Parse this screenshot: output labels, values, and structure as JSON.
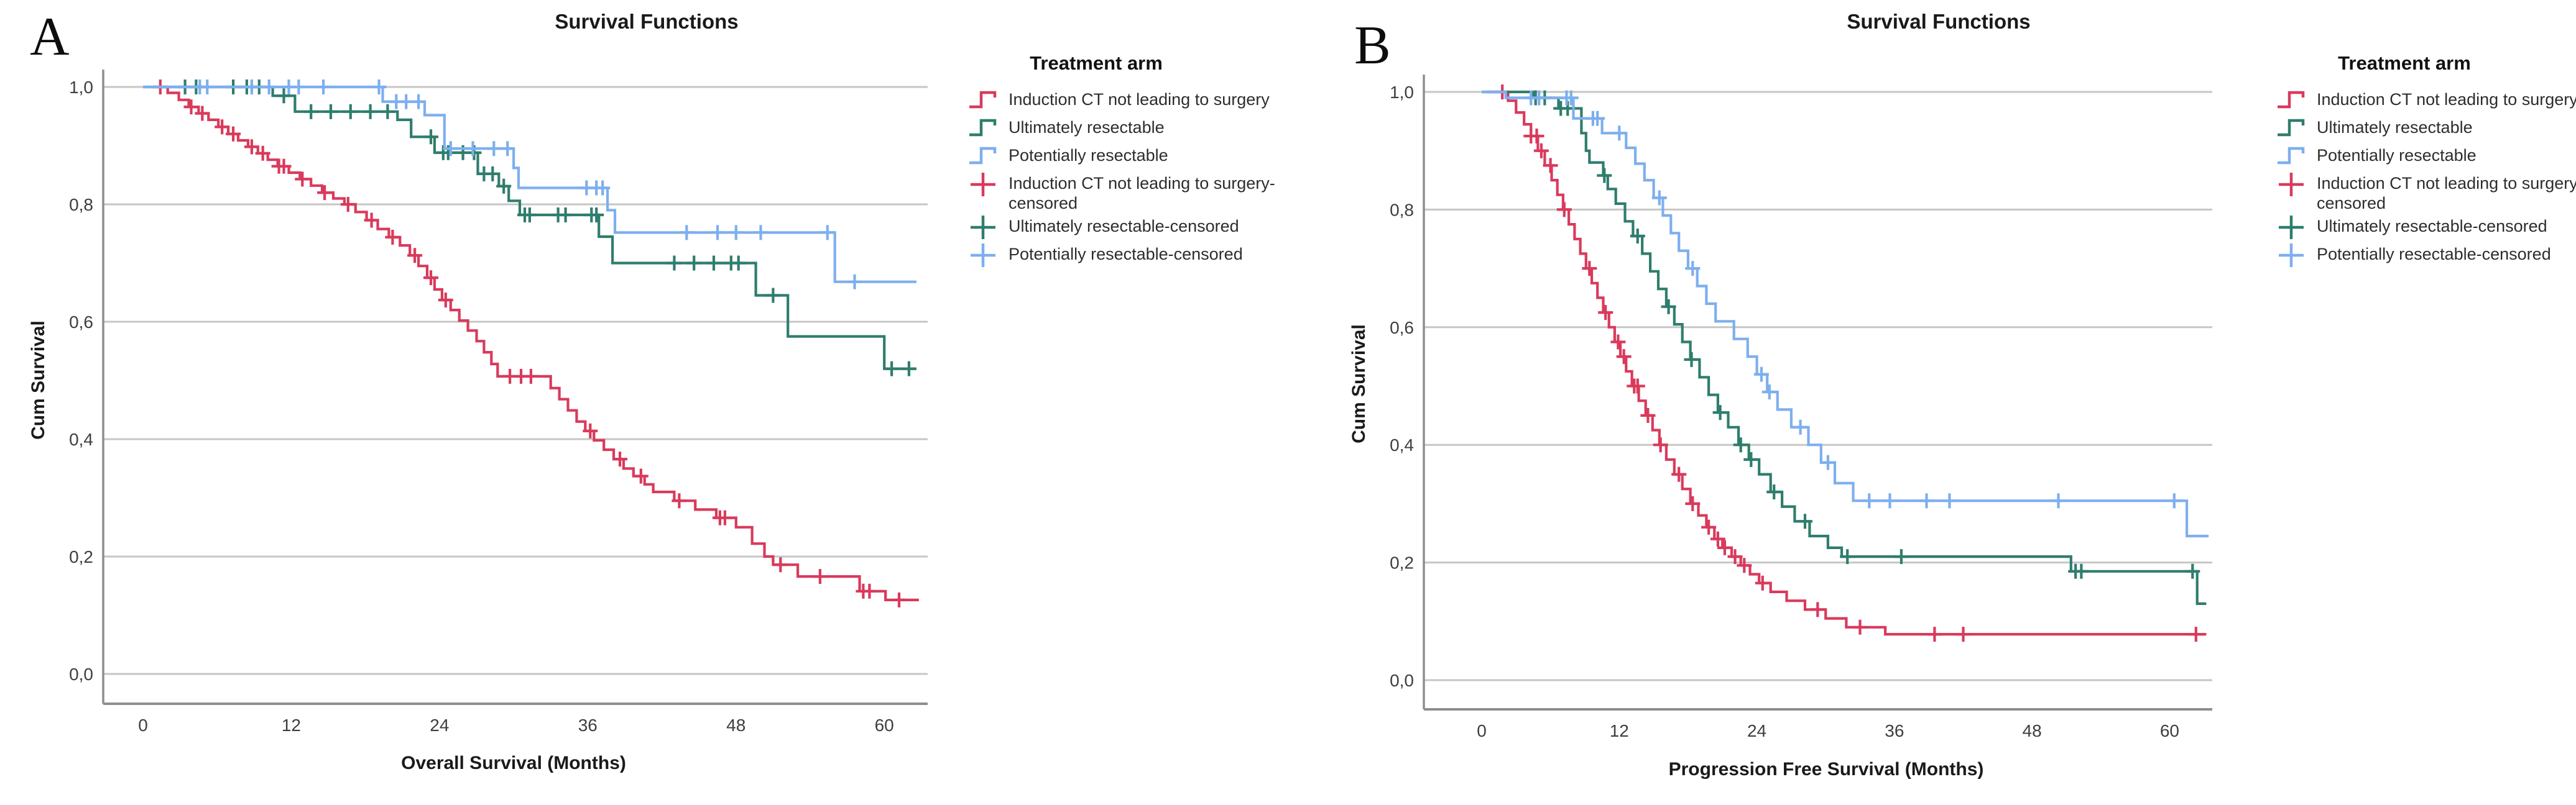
{
  "figure": {
    "background": "#ffffff"
  },
  "colors": {
    "red": "#d93a5c",
    "green": "#2f7d6d",
    "blue": "#7dafee",
    "grid": "#c6c6c6",
    "axis": "#8e8e8e",
    "tick_text": "#3e3e3e",
    "title_text": "#1a1a1a"
  },
  "legend": {
    "title": "Treatment arm",
    "items": [
      {
        "label": "Induction CT not leading to surgery",
        "color": "red",
        "glyph": "step"
      },
      {
        "label": "Ultimately resectable",
        "color": "green",
        "glyph": "step"
      },
      {
        "label": "Potentially resectable",
        "color": "blue",
        "glyph": "step"
      },
      {
        "label": "Induction CT not leading to surgery-censored",
        "color": "red",
        "glyph": "plus"
      },
      {
        "label": "Ultimately resectable-censored",
        "color": "green",
        "glyph": "plus"
      },
      {
        "label": "Potentially resectable-censored",
        "color": "blue",
        "glyph": "plus"
      }
    ]
  },
  "chart_data": [
    {
      "panel": "A",
      "type": "line",
      "subtype": "kaplan_meier_step",
      "title": "Survival Functions",
      "xlabel": "Overall Survival (Months)",
      "ylabel": "Cum Survival",
      "xticks": [
        0,
        12,
        24,
        36,
        48,
        60
      ],
      "yticks": [
        1.0,
        0.8,
        0.6,
        0.4,
        0.2,
        0.0
      ],
      "ytick_labels": [
        "1,0",
        "0,8",
        "0,6",
        "0,4",
        "0,2",
        "0,0"
      ],
      "xlim": [
        0,
        63
      ],
      "ylim": [
        0,
        1
      ],
      "grid": "horizontal",
      "legend_position": "right",
      "series": [
        {
          "key": "induction-ct-not-leading-to-surgery",
          "name": "Induction CT not leading to surgery",
          "color": "red",
          "end": 62.8,
          "steps": [
            [
              0.8,
              1.0
            ],
            [
              2.0,
              0.99
            ],
            [
              2.9,
              0.978
            ],
            [
              3.7,
              0.966
            ],
            [
              4.5,
              0.955
            ],
            [
              5.3,
              0.944
            ],
            [
              6.1,
              0.932
            ],
            [
              6.9,
              0.92
            ],
            [
              7.7,
              0.909
            ],
            [
              8.5,
              0.898
            ],
            [
              9.3,
              0.887
            ],
            [
              10.1,
              0.876
            ],
            [
              10.9,
              0.865
            ],
            [
              11.8,
              0.854
            ],
            [
              12.7,
              0.843
            ],
            [
              13.6,
              0.832
            ],
            [
              14.5,
              0.82
            ],
            [
              15.4,
              0.81
            ],
            [
              16.3,
              0.8
            ],
            [
              17.2,
              0.787
            ],
            [
              18.1,
              0.773
            ],
            [
              19.0,
              0.758
            ],
            [
              19.9,
              0.744
            ],
            [
              20.8,
              0.73
            ],
            [
              21.6,
              0.713
            ],
            [
              22.3,
              0.695
            ],
            [
              23.0,
              0.675
            ],
            [
              23.6,
              0.655
            ],
            [
              24.2,
              0.637
            ],
            [
              24.9,
              0.62
            ],
            [
              25.6,
              0.602
            ],
            [
              26.3,
              0.585
            ],
            [
              27.0,
              0.567
            ],
            [
              27.6,
              0.548
            ],
            [
              28.2,
              0.528
            ],
            [
              28.7,
              0.507
            ],
            [
              33.0,
              0.487
            ],
            [
              33.7,
              0.468
            ],
            [
              34.4,
              0.449
            ],
            [
              35.1,
              0.43
            ],
            [
              35.8,
              0.414
            ],
            [
              36.5,
              0.398
            ],
            [
              37.3,
              0.382
            ],
            [
              38.1,
              0.366
            ],
            [
              38.9,
              0.35
            ],
            [
              39.7,
              0.337
            ],
            [
              40.6,
              0.323
            ],
            [
              41.3,
              0.31
            ],
            [
              43.0,
              0.295
            ],
            [
              44.7,
              0.28
            ],
            [
              46.4,
              0.266
            ],
            [
              48.0,
              0.25
            ],
            [
              49.3,
              0.222
            ],
            [
              50.3,
              0.2
            ],
            [
              51.0,
              0.186
            ],
            [
              53.0,
              0.166
            ],
            [
              58.0,
              0.141
            ],
            [
              60.1,
              0.126
            ]
          ],
          "censored": [
            1.4,
            3.9,
            4.8,
            6.4,
            7.3,
            8.8,
            9.7,
            11.0,
            11.4,
            12.9,
            14.7,
            16.6,
            18.5,
            20.2,
            22.0,
            23.3,
            24.5,
            29.7,
            30.6,
            31.4,
            36.2,
            38.6,
            40.3,
            43.4,
            46.7,
            47.1,
            51.6,
            54.8,
            58.3,
            58.8,
            61.2
          ]
        },
        {
          "key": "ultimately-resectable",
          "name": "Ultimately resectable",
          "color": "green",
          "end": 62.6,
          "steps": [
            [
              0,
              1.0
            ],
            [
              10.5,
              0.985
            ],
            [
              12.3,
              0.958
            ],
            [
              20.6,
              0.944
            ],
            [
              21.7,
              0.915
            ],
            [
              23.6,
              0.888
            ],
            [
              27.1,
              0.852
            ],
            [
              28.8,
              0.831
            ],
            [
              29.6,
              0.806
            ],
            [
              30.5,
              0.782
            ],
            [
              36.9,
              0.745
            ],
            [
              38.0,
              0.7
            ],
            [
              49.6,
              0.645
            ],
            [
              52.2,
              0.575
            ],
            [
              60.0,
              0.52
            ]
          ],
          "censored": [
            3.4,
            4.3,
            7.3,
            8.4,
            9.4,
            11.4,
            13.6,
            15.2,
            16.8,
            18.4,
            19.8,
            23.3,
            24.3,
            24.7,
            25.9,
            26.8,
            27.6,
            28.3,
            29.2,
            30.9,
            31.3,
            33.6,
            34.2,
            36.3,
            36.7,
            43.0,
            44.6,
            46.2,
            47.6,
            48.2,
            51.0,
            60.6,
            62.0
          ]
        },
        {
          "key": "potentially-resectable",
          "name": "Potentially resectable",
          "color": "blue",
          "end": 62.6,
          "steps": [
            [
              0,
              1.0
            ],
            [
              19.4,
              0.975
            ],
            [
              22.8,
              0.952
            ],
            [
              24.4,
              0.895
            ],
            [
              30.0,
              0.862
            ],
            [
              30.4,
              0.828
            ],
            [
              37.6,
              0.79
            ],
            [
              38.2,
              0.752
            ],
            [
              56.0,
              0.668
            ]
          ],
          "censored": [
            4.6,
            5.2,
            8.8,
            10.2,
            11.8,
            12.6,
            14.6,
            19.1,
            20.5,
            21.3,
            22.3,
            24.9,
            26.7,
            28.4,
            29.5,
            35.9,
            36.7,
            37.2,
            44.0,
            46.5,
            48.0,
            50.0,
            55.4,
            57.6
          ]
        }
      ]
    },
    {
      "panel": "B",
      "type": "line",
      "subtype": "kaplan_meier_step",
      "title": "Survival Functions",
      "xlabel": "Progression Free Survival (Months)",
      "ylabel": "Cum Survival",
      "xticks": [
        0,
        12,
        24,
        36,
        48,
        60
      ],
      "yticks": [
        1.0,
        0.8,
        0.6,
        0.4,
        0.2,
        0.0
      ],
      "ytick_labels": [
        "1,0",
        "0,8",
        "0,6",
        "0,4",
        "0,2",
        "0,0"
      ],
      "xlim": [
        0,
        63.5
      ],
      "ylim": [
        0,
        1
      ],
      "grid": "horizontal",
      "legend_position": "right",
      "series": [
        {
          "key": "induction-ct-not-leading-to-surgery",
          "name": "Induction CT not leading to surgery",
          "color": "red",
          "end": 63.2,
          "steps": [
            [
              0.4,
              1.0
            ],
            [
              2.3,
              0.985
            ],
            [
              3.0,
              0.965
            ],
            [
              3.7,
              0.945
            ],
            [
              4.3,
              0.925
            ],
            [
              4.9,
              0.9
            ],
            [
              5.5,
              0.875
            ],
            [
              6.1,
              0.85
            ],
            [
              6.6,
              0.825
            ],
            [
              7.1,
              0.8
            ],
            [
              7.6,
              0.775
            ],
            [
              8.1,
              0.75
            ],
            [
              8.6,
              0.725
            ],
            [
              9.1,
              0.7
            ],
            [
              9.6,
              0.675
            ],
            [
              10.1,
              0.65
            ],
            [
              10.6,
              0.625
            ],
            [
              11.1,
              0.6
            ],
            [
              11.6,
              0.575
            ],
            [
              12.1,
              0.55
            ],
            [
              12.6,
              0.525
            ],
            [
              13.1,
              0.5
            ],
            [
              13.7,
              0.475
            ],
            [
              14.3,
              0.45
            ],
            [
              14.9,
              0.425
            ],
            [
              15.5,
              0.4
            ],
            [
              16.1,
              0.375
            ],
            [
              16.8,
              0.35
            ],
            [
              17.5,
              0.325
            ],
            [
              18.2,
              0.3
            ],
            [
              18.9,
              0.28
            ],
            [
              19.6,
              0.26
            ],
            [
              20.3,
              0.24
            ],
            [
              21.0,
              0.225
            ],
            [
              21.8,
              0.21
            ],
            [
              22.6,
              0.195
            ],
            [
              23.4,
              0.18
            ],
            [
              24.2,
              0.165
            ],
            [
              25.2,
              0.15
            ],
            [
              26.6,
              0.135
            ],
            [
              28.2,
              0.12
            ],
            [
              30.0,
              0.105
            ],
            [
              31.8,
              0.09
            ],
            [
              35.2,
              0.078
            ]
          ],
          "censored": [
            1.8,
            4.3,
            4.8,
            5.2,
            6.0,
            7.2,
            9.4,
            10.8,
            11.9,
            12.4,
            13.3,
            13.6,
            14.5,
            15.6,
            17.2,
            18.4,
            19.8,
            20.6,
            21.2,
            22.1,
            22.9,
            24.5,
            29.3,
            33.0,
            39.5,
            42.0,
            62.3
          ]
        },
        {
          "key": "ultimately-resectable",
          "name": "Ultimately resectable",
          "color": "green",
          "end": 63.2,
          "steps": [
            [
              0,
              1.0
            ],
            [
              4.5,
              0.99
            ],
            [
              6.7,
              0.972
            ],
            [
              8.7,
              0.93
            ],
            [
              9.1,
              0.9
            ],
            [
              9.4,
              0.88
            ],
            [
              10.6,
              0.858
            ],
            [
              11.0,
              0.835
            ],
            [
              11.7,
              0.81
            ],
            [
              12.5,
              0.78
            ],
            [
              13.2,
              0.755
            ],
            [
              14.0,
              0.725
            ],
            [
              14.7,
              0.695
            ],
            [
              15.4,
              0.665
            ],
            [
              16.1,
              0.635
            ],
            [
              16.8,
              0.605
            ],
            [
              17.5,
              0.575
            ],
            [
              18.2,
              0.545
            ],
            [
              19.0,
              0.515
            ],
            [
              19.8,
              0.485
            ],
            [
              20.6,
              0.455
            ],
            [
              21.5,
              0.43
            ],
            [
              22.4,
              0.4
            ],
            [
              23.3,
              0.375
            ],
            [
              24.2,
              0.35
            ],
            [
              25.2,
              0.32
            ],
            [
              26.2,
              0.295
            ],
            [
              27.3,
              0.27
            ],
            [
              28.6,
              0.245
            ],
            [
              30.2,
              0.225
            ],
            [
              31.4,
              0.21
            ],
            [
              51.4,
              0.185
            ],
            [
              62.4,
              0.13
            ]
          ],
          "censored": [
            4.7,
            5.5,
            6.9,
            7.5,
            10.7,
            13.6,
            16.3,
            18.3,
            20.8,
            22.6,
            23.5,
            25.5,
            28.2,
            31.9,
            36.6,
            51.8,
            52.3,
            62.0
          ]
        },
        {
          "key": "potentially-resectable",
          "name": "Potentially resectable",
          "color": "blue",
          "end": 63.4,
          "steps": [
            [
              0,
              1.0
            ],
            [
              2.1,
              0.99
            ],
            [
              8.0,
              0.955
            ],
            [
              10.5,
              0.93
            ],
            [
              12.6,
              0.905
            ],
            [
              13.4,
              0.878
            ],
            [
              14.2,
              0.85
            ],
            [
              15.0,
              0.82
            ],
            [
              15.8,
              0.79
            ],
            [
              16.5,
              0.76
            ],
            [
              17.2,
              0.73
            ],
            [
              18.0,
              0.7
            ],
            [
              18.8,
              0.67
            ],
            [
              19.6,
              0.64
            ],
            [
              20.4,
              0.61
            ],
            [
              22.0,
              0.58
            ],
            [
              23.2,
              0.55
            ],
            [
              24.0,
              0.52
            ],
            [
              24.9,
              0.49
            ],
            [
              25.8,
              0.46
            ],
            [
              27.0,
              0.43
            ],
            [
              28.5,
              0.4
            ],
            [
              29.6,
              0.37
            ],
            [
              30.8,
              0.335
            ],
            [
              32.4,
              0.305
            ],
            [
              61.5,
              0.245
            ]
          ],
          "censored": [
            4.3,
            5.0,
            7.4,
            7.8,
            9.7,
            10.1,
            12.0,
            15.5,
            18.4,
            24.4,
            25.1,
            27.8,
            30.2,
            33.8,
            35.6,
            38.8,
            40.8,
            50.3,
            60.4
          ]
        }
      ]
    }
  ]
}
